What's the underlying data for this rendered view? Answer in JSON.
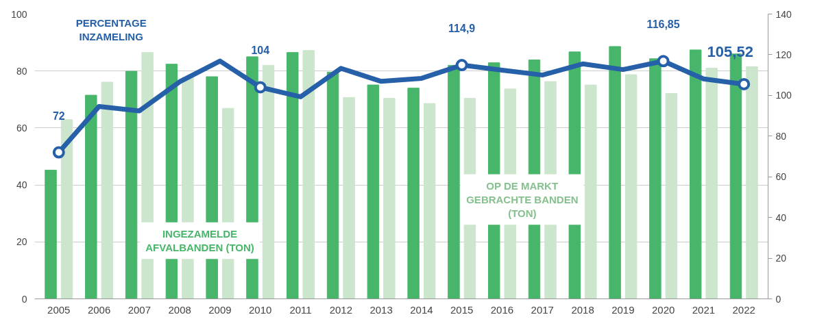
{
  "chart_data": {
    "type": "bar",
    "categories": [
      "2005",
      "2006",
      "2007",
      "2008",
      "2009",
      "2010",
      "2011",
      "2012",
      "2013",
      "2014",
      "2015",
      "2016",
      "2017",
      "2018",
      "2019",
      "2020",
      "2021",
      "2022"
    ],
    "series": [
      {
        "name": "INGEZAMELDE\nAFVALBANDEN (TON)",
        "color": "#48b66a",
        "values": [
          45.2,
          71.5,
          79.9,
          82.4,
          78.0,
          85.0,
          86.5,
          79.6,
          75.1,
          74.0,
          82.0,
          82.9,
          83.9,
          86.7,
          88.6,
          84.3,
          87.4,
          86.0
        ]
      },
      {
        "name": "OP DE MARKT\nGEBRACHTE BANDEN\n(TON)",
        "color": "#cce5cd",
        "values": [
          62.9,
          76.1,
          86.5,
          77.8,
          66.9,
          82.0,
          87.2,
          70.7,
          70.4,
          68.6,
          70.4,
          73.7,
          76.3,
          75.1,
          78.7,
          72.1,
          81.0,
          81.5
        ]
      },
      {
        "name": "PERCENTAGE\nINZAMELING",
        "type": "line",
        "axis": "y2",
        "color": "#2560a8",
        "values": [
          72,
          94.6,
          92.4,
          106.7,
          116.9,
          104,
          99.3,
          113.3,
          106.9,
          108.4,
          114.9,
          112.4,
          110.0,
          115.5,
          112.7,
          116.85,
          108.1,
          105.52
        ],
        "value_labels": [
          "72",
          null,
          null,
          null,
          null,
          "104",
          null,
          null,
          null,
          null,
          "114,9",
          null,
          null,
          null,
          null,
          "116,85",
          null,
          "105,52"
        ]
      }
    ],
    "ylim": [
      0,
      100
    ],
    "yticks": [
      0,
      20,
      40,
      60,
      80,
      100
    ],
    "y2lim": [
      0,
      140
    ],
    "y2ticks": [
      0,
      20,
      40,
      60,
      80,
      100,
      120,
      140
    ],
    "grid": "y",
    "legend": false
  }
}
